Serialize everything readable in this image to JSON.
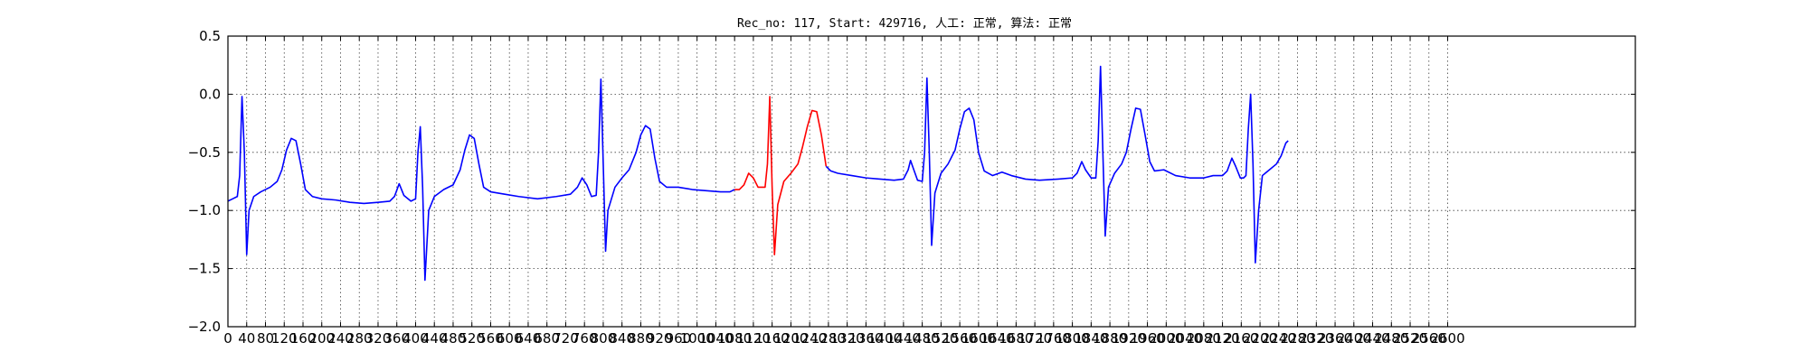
{
  "chart_data": {
    "type": "line",
    "title": "Rec_no: 117, Start: 429716, 人工: 正常, 算法: 正常",
    "xlabel": "",
    "ylabel": "",
    "xlim": [
      0,
      3000
    ],
    "ylim": [
      -2.0,
      0.5
    ],
    "grid": true,
    "x_ticks": [
      0,
      40,
      80,
      120,
      160,
      200,
      240,
      280,
      320,
      360,
      400,
      440,
      480,
      520,
      560,
      600,
      640,
      680,
      720,
      760,
      800,
      840,
      880,
      920,
      960,
      1000,
      1040,
      1080,
      1120,
      1160,
      1200,
      1240,
      1280,
      1320,
      1360,
      1400,
      1440,
      1480,
      1520,
      1560,
      1600,
      1640,
      1680,
      1720,
      1760,
      1800,
      1840,
      1880,
      1920,
      1960,
      2000,
      2040,
      2080,
      2120,
      2160,
      2200,
      2240,
      2280,
      2320,
      2360,
      2400,
      2440,
      2480,
      2520,
      2560,
      2600
    ],
    "y_ticks": [
      0.5,
      0.0,
      -0.5,
      -1.0,
      -1.5,
      -2.0
    ],
    "y_tick_labels": [
      "0.5",
      "0.0",
      "−0.5",
      "−1.0",
      "−1.5",
      "−2.0"
    ],
    "series": [
      {
        "color": "#0000ff",
        "segment": "before",
        "points": [
          [
            0,
            -0.92
          ],
          [
            10,
            -0.9
          ],
          [
            20,
            -0.88
          ],
          [
            25,
            -0.7
          ],
          [
            30,
            -0.02
          ],
          [
            35,
            -0.5
          ],
          [
            40,
            -1.38
          ],
          [
            45,
            -1.0
          ],
          [
            55,
            -0.88
          ],
          [
            70,
            -0.84
          ],
          [
            90,
            -0.8
          ],
          [
            105,
            -0.75
          ],
          [
            115,
            -0.65
          ],
          [
            125,
            -0.48
          ],
          [
            135,
            -0.38
          ],
          [
            145,
            -0.4
          ],
          [
            155,
            -0.6
          ],
          [
            165,
            -0.82
          ],
          [
            180,
            -0.88
          ],
          [
            200,
            -0.9
          ],
          [
            230,
            -0.91
          ],
          [
            260,
            -0.93
          ],
          [
            290,
            -0.94
          ],
          [
            320,
            -0.93
          ],
          [
            345,
            -0.92
          ],
          [
            355,
            -0.88
          ],
          [
            365,
            -0.77
          ],
          [
            375,
            -0.87
          ],
          [
            390,
            -0.92
          ],
          [
            400,
            -0.9
          ],
          [
            405,
            -0.5
          ],
          [
            410,
            -0.28
          ],
          [
            415,
            -0.8
          ],
          [
            420,
            -1.6
          ],
          [
            428,
            -1.0
          ],
          [
            440,
            -0.88
          ],
          [
            460,
            -0.82
          ],
          [
            480,
            -0.78
          ],
          [
            495,
            -0.65
          ],
          [
            505,
            -0.48
          ],
          [
            515,
            -0.35
          ],
          [
            525,
            -0.38
          ],
          [
            535,
            -0.6
          ],
          [
            545,
            -0.8
          ],
          [
            560,
            -0.84
          ],
          [
            590,
            -0.86
          ],
          [
            620,
            -0.88
          ],
          [
            660,
            -0.9
          ],
          [
            700,
            -0.88
          ],
          [
            730,
            -0.86
          ],
          [
            745,
            -0.8
          ],
          [
            755,
            -0.72
          ],
          [
            765,
            -0.78
          ],
          [
            775,
            -0.88
          ],
          [
            785,
            -0.87
          ],
          [
            790,
            -0.5
          ],
          [
            795,
            0.13
          ],
          [
            800,
            -0.6
          ],
          [
            805,
            -1.35
          ],
          [
            810,
            -1.0
          ],
          [
            825,
            -0.8
          ],
          [
            840,
            -0.72
          ],
          [
            855,
            -0.65
          ],
          [
            870,
            -0.5
          ],
          [
            880,
            -0.35
          ],
          [
            890,
            -0.27
          ],
          [
            900,
            -0.3
          ],
          [
            910,
            -0.55
          ],
          [
            920,
            -0.75
          ],
          [
            935,
            -0.8
          ],
          [
            960,
            -0.8
          ],
          [
            990,
            -0.82
          ],
          [
            1020,
            -0.83
          ],
          [
            1050,
            -0.84
          ],
          [
            1070,
            -0.84
          ],
          [
            1080,
            -0.82
          ]
        ]
      },
      {
        "color": "#ff0000",
        "segment": "highlighted",
        "points": [
          [
            1080,
            -0.82
          ],
          [
            1090,
            -0.82
          ],
          [
            1100,
            -0.78
          ],
          [
            1110,
            -0.68
          ],
          [
            1120,
            -0.72
          ],
          [
            1130,
            -0.8
          ],
          [
            1145,
            -0.8
          ],
          [
            1150,
            -0.6
          ],
          [
            1155,
            -0.02
          ],
          [
            1160,
            -0.8
          ],
          [
            1165,
            -1.38
          ],
          [
            1172,
            -0.95
          ],
          [
            1185,
            -0.75
          ],
          [
            1200,
            -0.68
          ],
          [
            1215,
            -0.6
          ],
          [
            1225,
            -0.45
          ],
          [
            1235,
            -0.28
          ],
          [
            1245,
            -0.14
          ],
          [
            1255,
            -0.15
          ],
          [
            1265,
            -0.35
          ],
          [
            1275,
            -0.62
          ]
        ]
      },
      {
        "color": "#0000ff",
        "segment": "after",
        "points": [
          [
            1275,
            -0.62
          ],
          [
            1285,
            -0.66
          ],
          [
            1300,
            -0.68
          ],
          [
            1330,
            -0.7
          ],
          [
            1360,
            -0.72
          ],
          [
            1390,
            -0.73
          ],
          [
            1420,
            -0.74
          ],
          [
            1440,
            -0.73
          ],
          [
            1450,
            -0.65
          ],
          [
            1455,
            -0.57
          ],
          [
            1462,
            -0.65
          ],
          [
            1470,
            -0.74
          ],
          [
            1480,
            -0.75
          ],
          [
            1485,
            -0.5
          ],
          [
            1490,
            0.14
          ],
          [
            1495,
            -0.5
          ],
          [
            1500,
            -1.3
          ],
          [
            1507,
            -0.85
          ],
          [
            1520,
            -0.68
          ],
          [
            1535,
            -0.6
          ],
          [
            1550,
            -0.48
          ],
          [
            1560,
            -0.3
          ],
          [
            1570,
            -0.15
          ],
          [
            1580,
            -0.12
          ],
          [
            1590,
            -0.22
          ],
          [
            1600,
            -0.5
          ],
          [
            1612,
            -0.66
          ],
          [
            1630,
            -0.7
          ],
          [
            1650,
            -0.67
          ],
          [
            1670,
            -0.7
          ],
          [
            1700,
            -0.73
          ],
          [
            1730,
            -0.74
          ],
          [
            1770,
            -0.73
          ],
          [
            1800,
            -0.72
          ],
          [
            1810,
            -0.68
          ],
          [
            1820,
            -0.58
          ],
          [
            1828,
            -0.65
          ],
          [
            1840,
            -0.72
          ],
          [
            1850,
            -0.72
          ],
          [
            1855,
            -0.4
          ],
          [
            1860,
            0.24
          ],
          [
            1865,
            -0.5
          ],
          [
            1870,
            -1.22
          ],
          [
            1877,
            -0.8
          ],
          [
            1890,
            -0.68
          ],
          [
            1905,
            -0.6
          ],
          [
            1915,
            -0.5
          ],
          [
            1925,
            -0.3
          ],
          [
            1935,
            -0.12
          ],
          [
            1945,
            -0.13
          ],
          [
            1955,
            -0.35
          ],
          [
            1965,
            -0.58
          ],
          [
            1975,
            -0.66
          ],
          [
            1995,
            -0.65
          ],
          [
            2020,
            -0.7
          ],
          [
            2050,
            -0.72
          ],
          [
            2080,
            -0.72
          ],
          [
            2100,
            -0.7
          ],
          [
            2120,
            -0.7
          ],
          [
            2130,
            -0.66
          ],
          [
            2140,
            -0.55
          ],
          [
            2148,
            -0.62
          ],
          [
            2158,
            -0.72
          ],
          [
            2165,
            -0.72
          ],
          [
            2170,
            -0.7
          ],
          [
            2175,
            -0.3
          ],
          [
            2180,
            0.0
          ],
          [
            2185,
            -0.6
          ],
          [
            2190,
            -1.45
          ],
          [
            2197,
            -1.0
          ],
          [
            2205,
            -0.7
          ],
          [
            2220,
            -0.65
          ],
          [
            2235,
            -0.6
          ],
          [
            2245,
            -0.53
          ],
          [
            2255,
            -0.42
          ],
          [
            2260,
            -0.4
          ]
        ]
      }
    ]
  }
}
